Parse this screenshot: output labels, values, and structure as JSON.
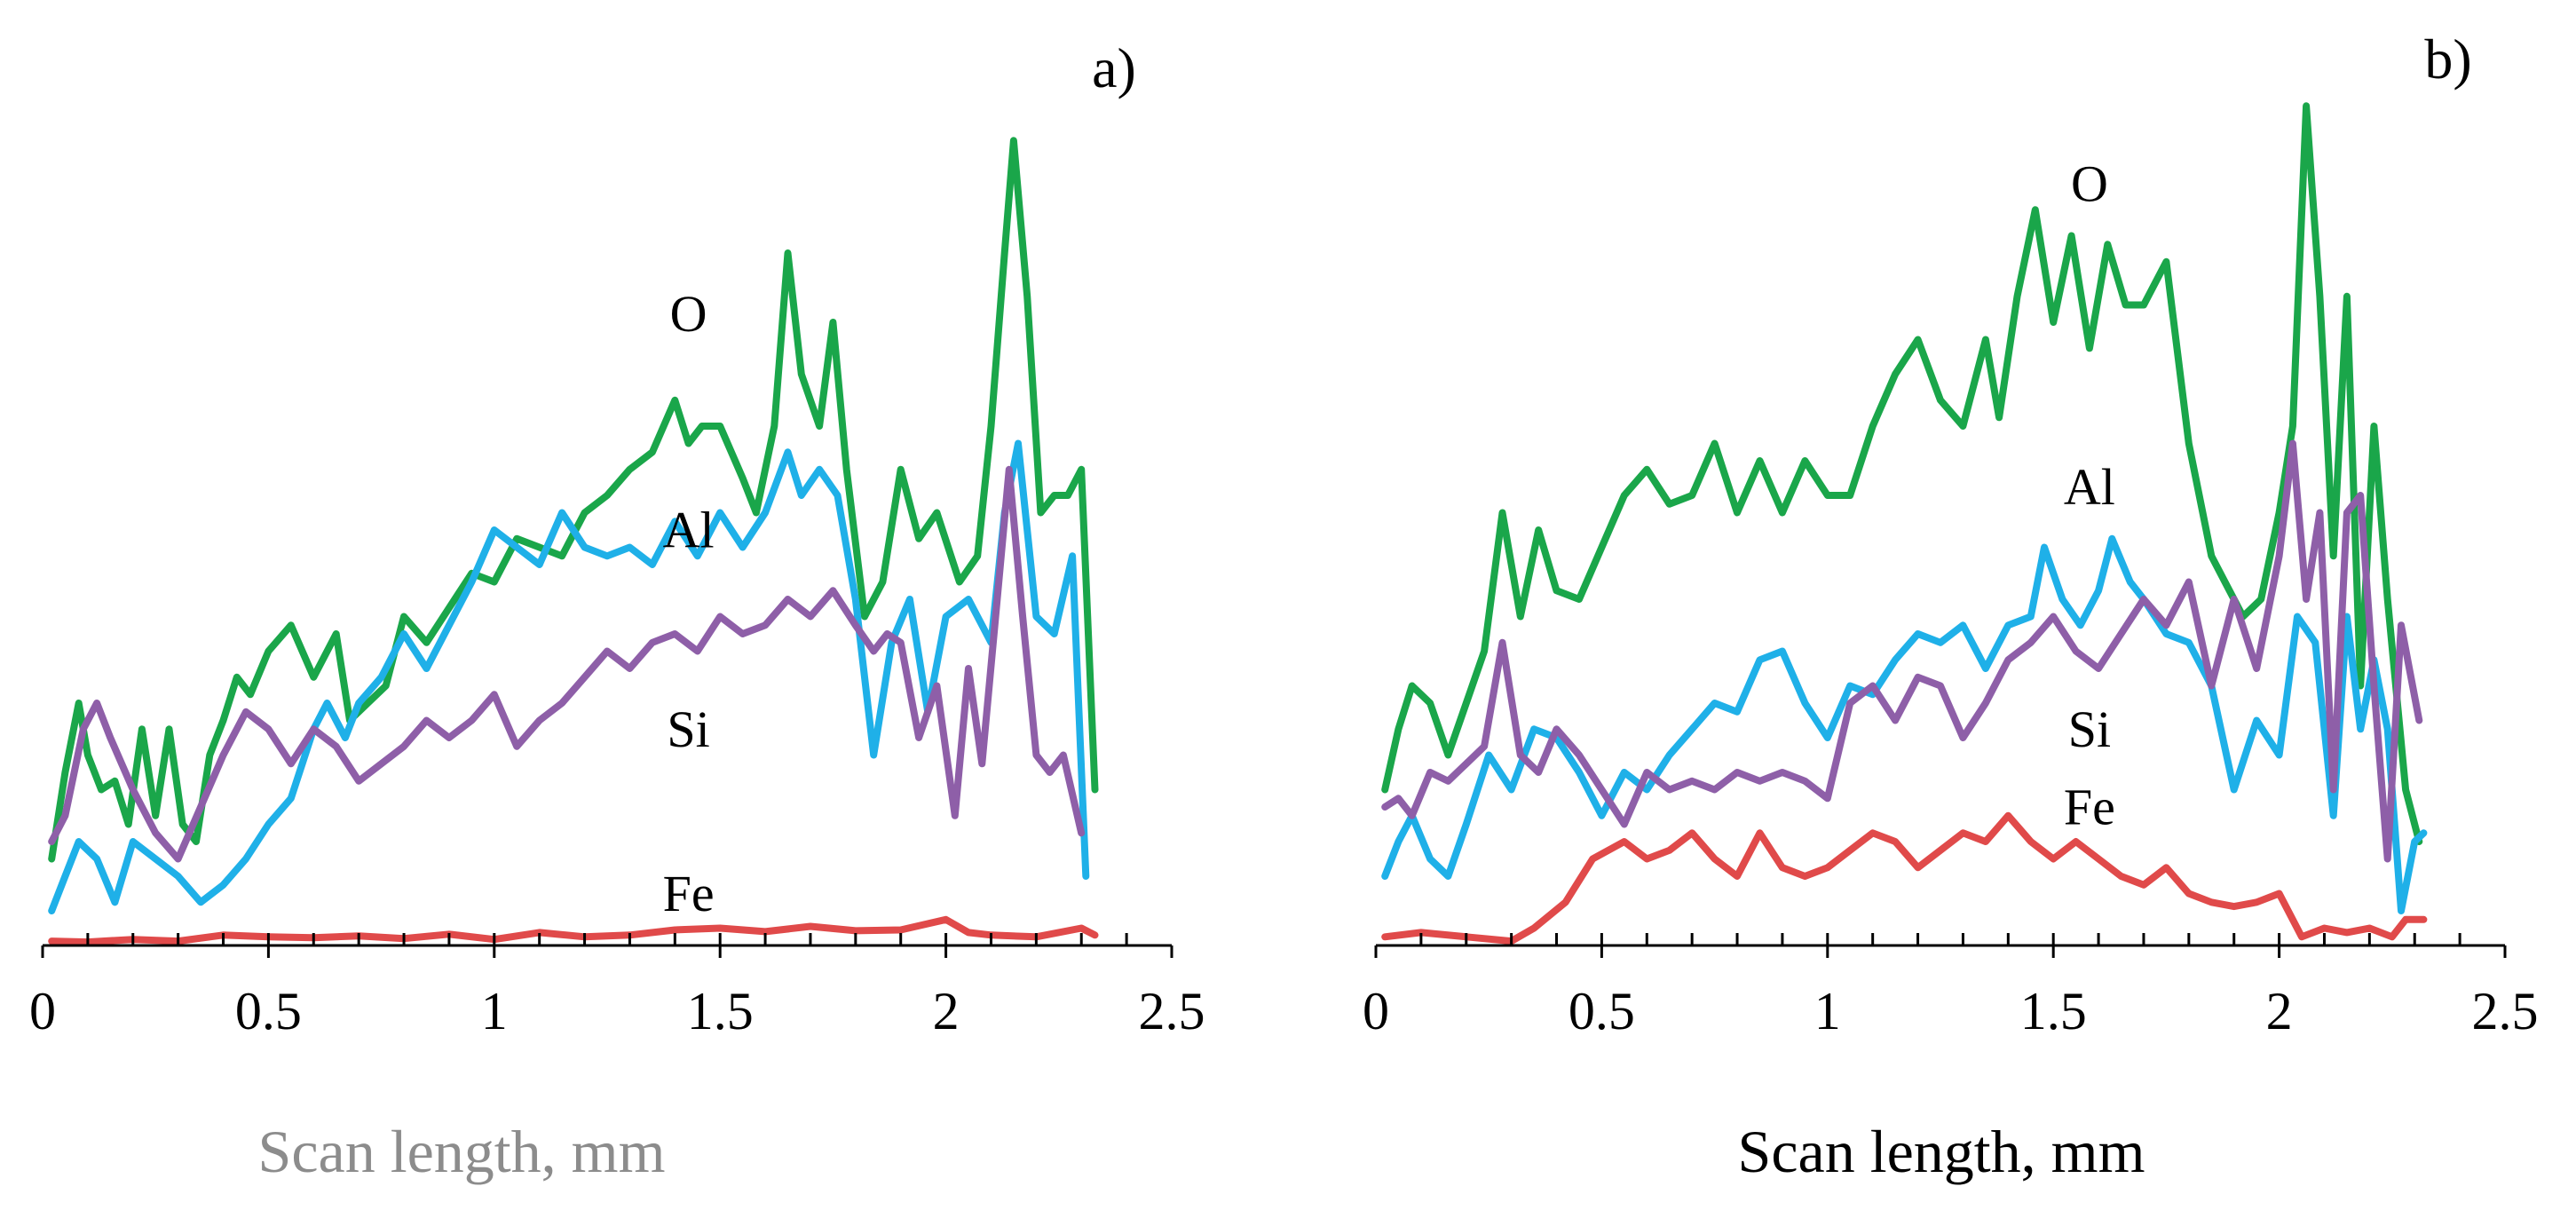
{
  "chart_data": [
    {
      "type": "line",
      "panel_label": "a)",
      "xlabel": "Scan length, mm",
      "xlabel_color": "#8c8c8c",
      "ylabel": "",
      "xlim": [
        0,
        2.5
      ],
      "ylim": [
        0,
        100
      ],
      "x_ticks": [
        "0",
        "0.5",
        "1",
        "1.5",
        "2",
        "2.5"
      ],
      "series": [
        {
          "name": "O",
          "color": "#1aa64a",
          "x": [
            0.02,
            0.05,
            0.08,
            0.1,
            0.13,
            0.16,
            0.19,
            0.22,
            0.25,
            0.28,
            0.31,
            0.34,
            0.37,
            0.4,
            0.43,
            0.46,
            0.5,
            0.55,
            0.6,
            0.65,
            0.68,
            0.72,
            0.76,
            0.8,
            0.85,
            0.9,
            0.95,
            1.0,
            1.05,
            1.1,
            1.15,
            1.2,
            1.25,
            1.3,
            1.35,
            1.4,
            1.43,
            1.46,
            1.5,
            1.55,
            1.58,
            1.62,
            1.65,
            1.68,
            1.72,
            1.75,
            1.78,
            1.82,
            1.86,
            1.9,
            1.94,
            1.98,
            2.03,
            2.07,
            2.1,
            2.13,
            2.15,
            2.18,
            2.21,
            2.24,
            2.27,
            2.3,
            2.33
          ],
          "values": [
            10,
            20,
            28,
            22,
            18,
            19,
            14,
            25,
            15,
            25,
            14,
            12,
            22,
            26,
            31,
            29,
            34,
            37,
            31,
            36,
            26,
            28,
            30,
            38,
            35,
            39,
            43,
            42,
            47,
            46,
            45,
            50,
            52,
            55,
            57,
            63,
            58,
            60,
            60,
            54,
            50,
            60,
            80,
            66,
            60,
            72,
            55,
            38,
            42,
            55,
            47,
            50,
            42,
            45,
            60,
            80,
            93,
            75,
            50,
            52,
            52,
            55,
            18
          ]
        },
        {
          "name": "Al",
          "color": "#1fb0e8",
          "x": [
            0.02,
            0.05,
            0.08,
            0.12,
            0.16,
            0.2,
            0.25,
            0.3,
            0.35,
            0.4,
            0.45,
            0.5,
            0.55,
            0.6,
            0.63,
            0.67,
            0.7,
            0.75,
            0.8,
            0.85,
            0.9,
            0.95,
            1.0,
            1.05,
            1.1,
            1.15,
            1.2,
            1.25,
            1.3,
            1.35,
            1.4,
            1.45,
            1.5,
            1.55,
            1.6,
            1.65,
            1.68,
            1.72,
            1.76,
            1.8,
            1.84,
            1.88,
            1.92,
            1.96,
            2.0,
            2.05,
            2.1,
            2.13,
            2.16,
            2.2,
            2.24,
            2.28,
            2.31
          ],
          "values": [
            4,
            8,
            12,
            10,
            5,
            12,
            10,
            8,
            5,
            7,
            10,
            14,
            17,
            25,
            28,
            24,
            28,
            31,
            36,
            32,
            37,
            42,
            48,
            46,
            44,
            50,
            46,
            45,
            46,
            44,
            49,
            45,
            50,
            46,
            50,
            57,
            52,
            55,
            52,
            40,
            22,
            35,
            40,
            27,
            38,
            40,
            35,
            50,
            58,
            38,
            36,
            45,
            8
          ]
        },
        {
          "name": "Si",
          "color": "#8e5fa8",
          "x": [
            0.02,
            0.05,
            0.09,
            0.12,
            0.15,
            0.2,
            0.25,
            0.3,
            0.35,
            0.4,
            0.45,
            0.5,
            0.55,
            0.6,
            0.65,
            0.7,
            0.75,
            0.8,
            0.85,
            0.9,
            0.95,
            1.0,
            1.05,
            1.1,
            1.15,
            1.2,
            1.25,
            1.3,
            1.35,
            1.4,
            1.45,
            1.5,
            1.55,
            1.6,
            1.65,
            1.7,
            1.75,
            1.8,
            1.84,
            1.87,
            1.9,
            1.94,
            1.98,
            2.02,
            2.05,
            2.08,
            2.11,
            2.14,
            2.17,
            2.2,
            2.23,
            2.26,
            2.3
          ],
          "values": [
            12,
            15,
            25,
            28,
            24,
            18,
            13,
            10,
            16,
            22,
            27,
            25,
            21,
            25,
            23,
            19,
            21,
            23,
            26,
            24,
            26,
            29,
            23,
            26,
            28,
            31,
            34,
            32,
            35,
            36,
            34,
            38,
            36,
            37,
            40,
            38,
            41,
            37,
            34,
            36,
            35,
            24,
            30,
            15,
            32,
            21,
            38,
            55,
            38,
            22,
            20,
            22,
            13
          ]
        },
        {
          "name": "Fe",
          "color": "#e04a4a",
          "x": [
            0.02,
            0.1,
            0.2,
            0.3,
            0.4,
            0.5,
            0.6,
            0.7,
            0.8,
            0.9,
            1.0,
            1.1,
            1.2,
            1.3,
            1.4,
            1.5,
            1.6,
            1.7,
            1.8,
            1.9,
            2.0,
            2.05,
            2.1,
            2.2,
            2.3,
            2.33
          ],
          "values": [
            0.5,
            0.4,
            0.7,
            0.5,
            1.2,
            1.0,
            0.9,
            1.1,
            0.8,
            1.3,
            0.7,
            1.5,
            1.0,
            1.2,
            1.8,
            2.0,
            1.6,
            2.2,
            1.7,
            1.8,
            3.0,
            1.5,
            1.2,
            1.0,
            2.0,
            1.2
          ]
        }
      ],
      "annotations": [
        {
          "text": "O",
          "x": 1.43,
          "y": 71
        },
        {
          "text": "Al",
          "x": 1.43,
          "y": 46
        },
        {
          "text": "Si",
          "x": 1.43,
          "y": 23
        },
        {
          "text": "Fe",
          "x": 1.43,
          "y": 4
        }
      ]
    },
    {
      "type": "line",
      "panel_label": "b)",
      "xlabel": "Scan length, mm",
      "xlabel_color": "#000000",
      "ylabel": "",
      "xlim": [
        0,
        2.5
      ],
      "ylim": [
        0,
        100
      ],
      "x_ticks": [
        "0",
        "0.5",
        "1",
        "1.5",
        "2",
        "2.5"
      ],
      "series": [
        {
          "name": "O",
          "color": "#1aa64a",
          "x": [
            0.02,
            0.05,
            0.08,
            0.12,
            0.16,
            0.2,
            0.24,
            0.28,
            0.32,
            0.36,
            0.4,
            0.45,
            0.5,
            0.55,
            0.6,
            0.65,
            0.7,
            0.75,
            0.8,
            0.85,
            0.9,
            0.95,
            1.0,
            1.05,
            1.1,
            1.15,
            1.2,
            1.25,
            1.3,
            1.35,
            1.38,
            1.42,
            1.46,
            1.5,
            1.54,
            1.58,
            1.62,
            1.66,
            1.7,
            1.75,
            1.8,
            1.85,
            1.88,
            1.92,
            1.96,
            2.0,
            2.03,
            2.06,
            2.09,
            2.12,
            2.15,
            2.18,
            2.21,
            2.24,
            2.28,
            2.31
          ],
          "values": [
            18,
            25,
            30,
            28,
            22,
            28,
            34,
            50,
            38,
            48,
            41,
            40,
            46,
            52,
            55,
            51,
            52,
            58,
            50,
            56,
            50,
            56,
            52,
            52,
            60,
            66,
            70,
            63,
            60,
            70,
            61,
            75,
            85,
            72,
            82,
            69,
            81,
            74,
            74,
            79,
            58,
            45,
            42,
            38,
            40,
            50,
            60,
            97,
            75,
            45,
            75,
            30,
            60,
            40,
            18,
            12
          ]
        },
        {
          "name": "Al",
          "color": "#1fb0e8",
          "x": [
            0.02,
            0.05,
            0.08,
            0.12,
            0.16,
            0.2,
            0.25,
            0.3,
            0.35,
            0.4,
            0.45,
            0.5,
            0.55,
            0.6,
            0.65,
            0.7,
            0.75,
            0.8,
            0.85,
            0.9,
            0.95,
            1.0,
            1.05,
            1.1,
            1.15,
            1.2,
            1.25,
            1.3,
            1.35,
            1.4,
            1.45,
            1.48,
            1.52,
            1.56,
            1.6,
            1.63,
            1.67,
            1.7,
            1.75,
            1.8,
            1.85,
            1.9,
            1.95,
            2.0,
            2.04,
            2.08,
            2.12,
            2.15,
            2.18,
            2.21,
            2.24,
            2.27,
            2.3,
            2.32
          ],
          "values": [
            8,
            12,
            15,
            10,
            8,
            14,
            22,
            18,
            25,
            24,
            20,
            15,
            20,
            18,
            22,
            25,
            28,
            27,
            33,
            34,
            28,
            24,
            30,
            29,
            33,
            36,
            35,
            37,
            32,
            37,
            38,
            46,
            40,
            37,
            41,
            47,
            42,
            40,
            36,
            35,
            30,
            18,
            26,
            22,
            38,
            35,
            15,
            38,
            25,
            33,
            25,
            4,
            12,
            13
          ]
        },
        {
          "name": "Si",
          "color": "#8e5fa8",
          "x": [
            0.02,
            0.05,
            0.08,
            0.12,
            0.16,
            0.2,
            0.24,
            0.28,
            0.32,
            0.36,
            0.4,
            0.45,
            0.5,
            0.55,
            0.6,
            0.65,
            0.7,
            0.75,
            0.8,
            0.85,
            0.9,
            0.95,
            1.0,
            1.05,
            1.1,
            1.15,
            1.2,
            1.25,
            1.3,
            1.35,
            1.4,
            1.45,
            1.5,
            1.55,
            1.6,
            1.65,
            1.7,
            1.75,
            1.8,
            1.85,
            1.9,
            1.95,
            2.0,
            2.03,
            2.06,
            2.09,
            2.12,
            2.15,
            2.18,
            2.21,
            2.24,
            2.27,
            2.31
          ],
          "values": [
            16,
            17,
            15,
            20,
            19,
            21,
            23,
            35,
            22,
            20,
            25,
            22,
            18,
            14,
            20,
            18,
            19,
            18,
            20,
            19,
            20,
            19,
            17,
            28,
            30,
            26,
            31,
            30,
            24,
            28,
            33,
            35,
            38,
            34,
            32,
            36,
            40,
            37,
            42,
            30,
            40,
            32,
            45,
            58,
            40,
            50,
            18,
            50,
            52,
            30,
            10,
            37,
            26
          ]
        },
        {
          "name": "Fe",
          "color": "#e04a4a",
          "x": [
            0.02,
            0.1,
            0.2,
            0.3,
            0.35,
            0.42,
            0.48,
            0.55,
            0.6,
            0.65,
            0.7,
            0.75,
            0.8,
            0.85,
            0.9,
            0.95,
            1.0,
            1.05,
            1.1,
            1.15,
            1.2,
            1.25,
            1.3,
            1.35,
            1.4,
            1.45,
            1.5,
            1.55,
            1.6,
            1.65,
            1.7,
            1.75,
            1.8,
            1.85,
            1.9,
            1.95,
            2.0,
            2.05,
            2.1,
            2.15,
            2.2,
            2.25,
            2.28,
            2.32
          ],
          "values": [
            1,
            1.5,
            1,
            0.5,
            2,
            5,
            10,
            12,
            10,
            11,
            13,
            10,
            8,
            13,
            9,
            8,
            9,
            11,
            13,
            12,
            9,
            11,
            13,
            12,
            15,
            12,
            10,
            12,
            10,
            8,
            7,
            9,
            6,
            5,
            4.5,
            5,
            6,
            1,
            2,
            1.5,
            2,
            1,
            3,
            3
          ]
        }
      ],
      "annotations": [
        {
          "text": "O",
          "x": 1.58,
          "y": 86
        },
        {
          "text": "Al",
          "x": 1.58,
          "y": 51
        },
        {
          "text": "Si",
          "x": 1.58,
          "y": 23
        },
        {
          "text": "Fe",
          "x": 1.58,
          "y": 14
        }
      ]
    }
  ]
}
